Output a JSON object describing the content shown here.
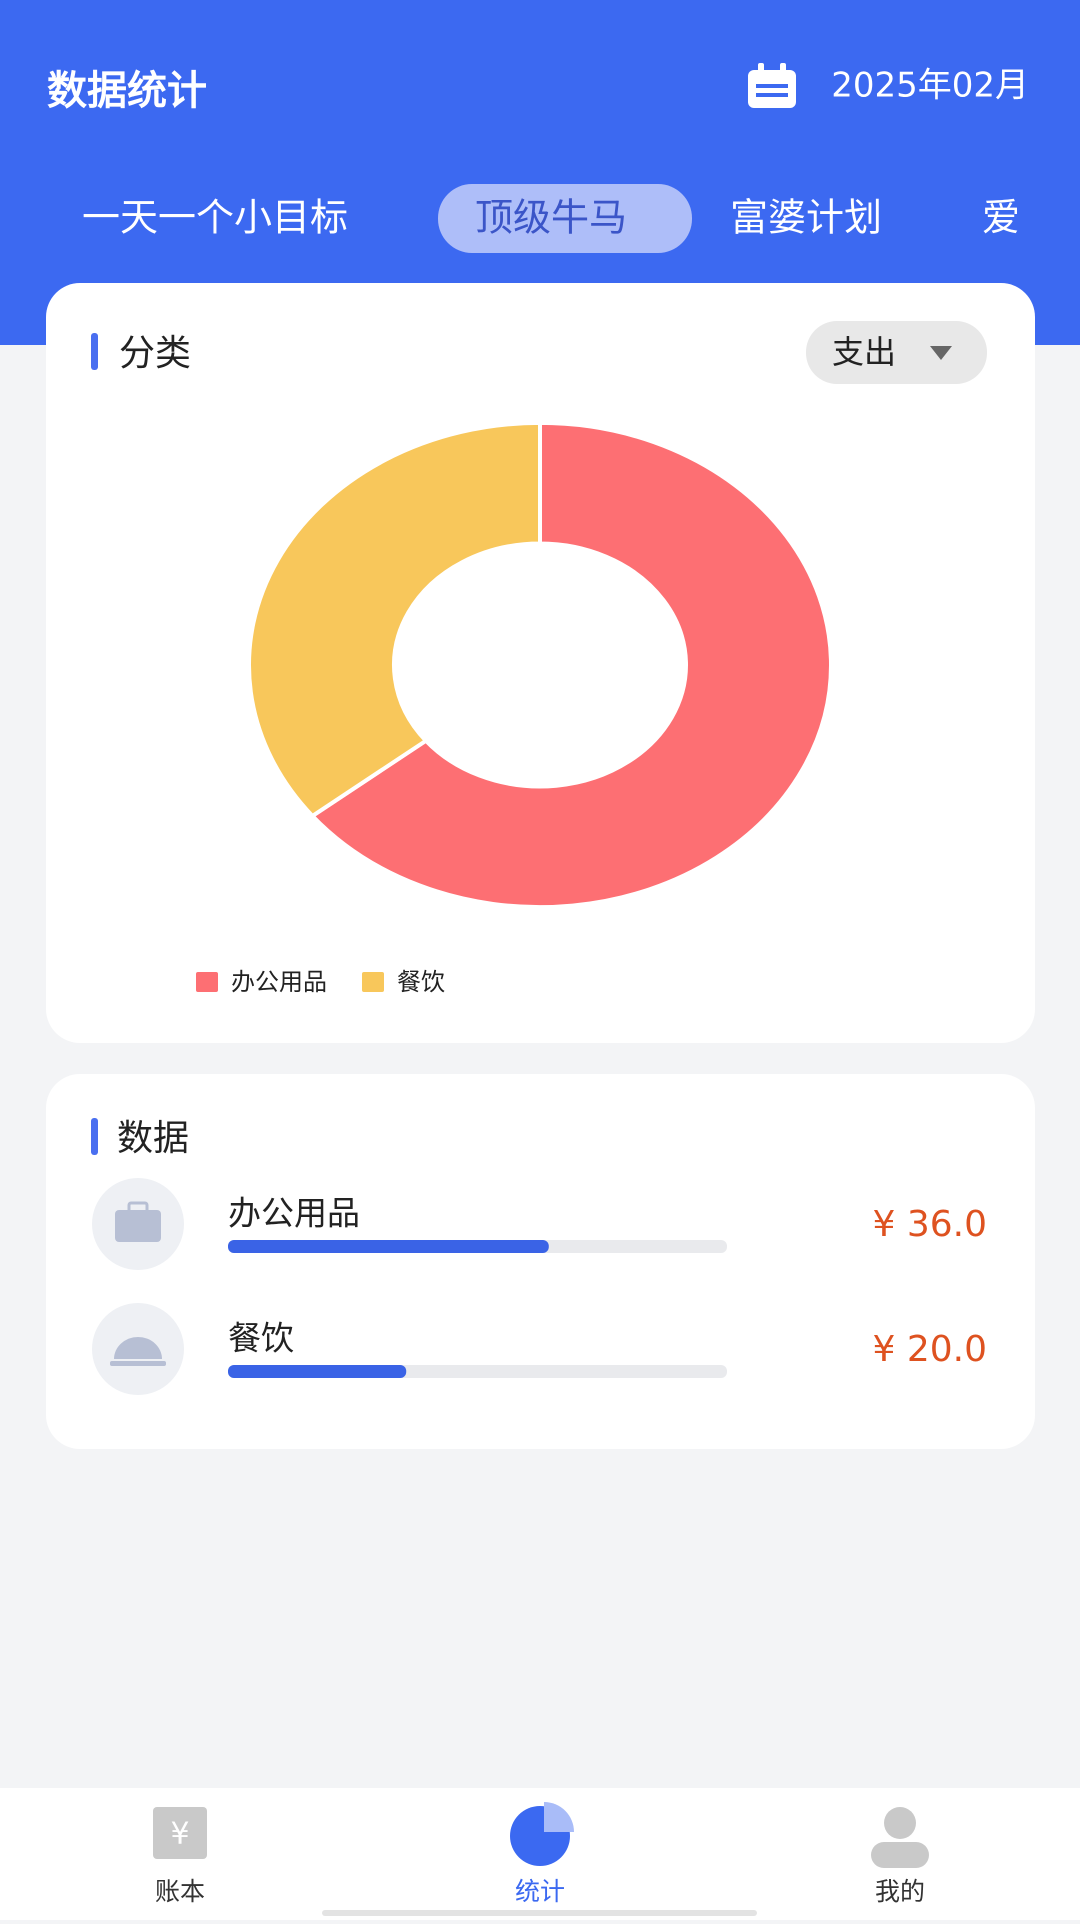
{
  "header": {
    "title": "数据统计",
    "date": "2025年02月"
  },
  "tabs": [
    "一天一个小目标",
    "顶级牛马",
    "富婆计划",
    "爱"
  ],
  "active_tab": 1,
  "category_card": {
    "title": "分类",
    "dropdown": "支出"
  },
  "chart_data": {
    "type": "pie",
    "categories": [
      "办公用品",
      "餐饮"
    ],
    "values": [
      36,
      20
    ],
    "value_labels": [
      "¥ 36.0",
      "¥ 20.0"
    ],
    "colors": [
      "#fd6f73",
      "#f8c75b"
    ],
    "legend": "bottom"
  },
  "data_card": {
    "title": "数据"
  },
  "nav": [
    {
      "label": "账本",
      "icon_text": "¥"
    },
    {
      "label": "统计"
    },
    {
      "label": "我的"
    }
  ],
  "active_nav": 1
}
